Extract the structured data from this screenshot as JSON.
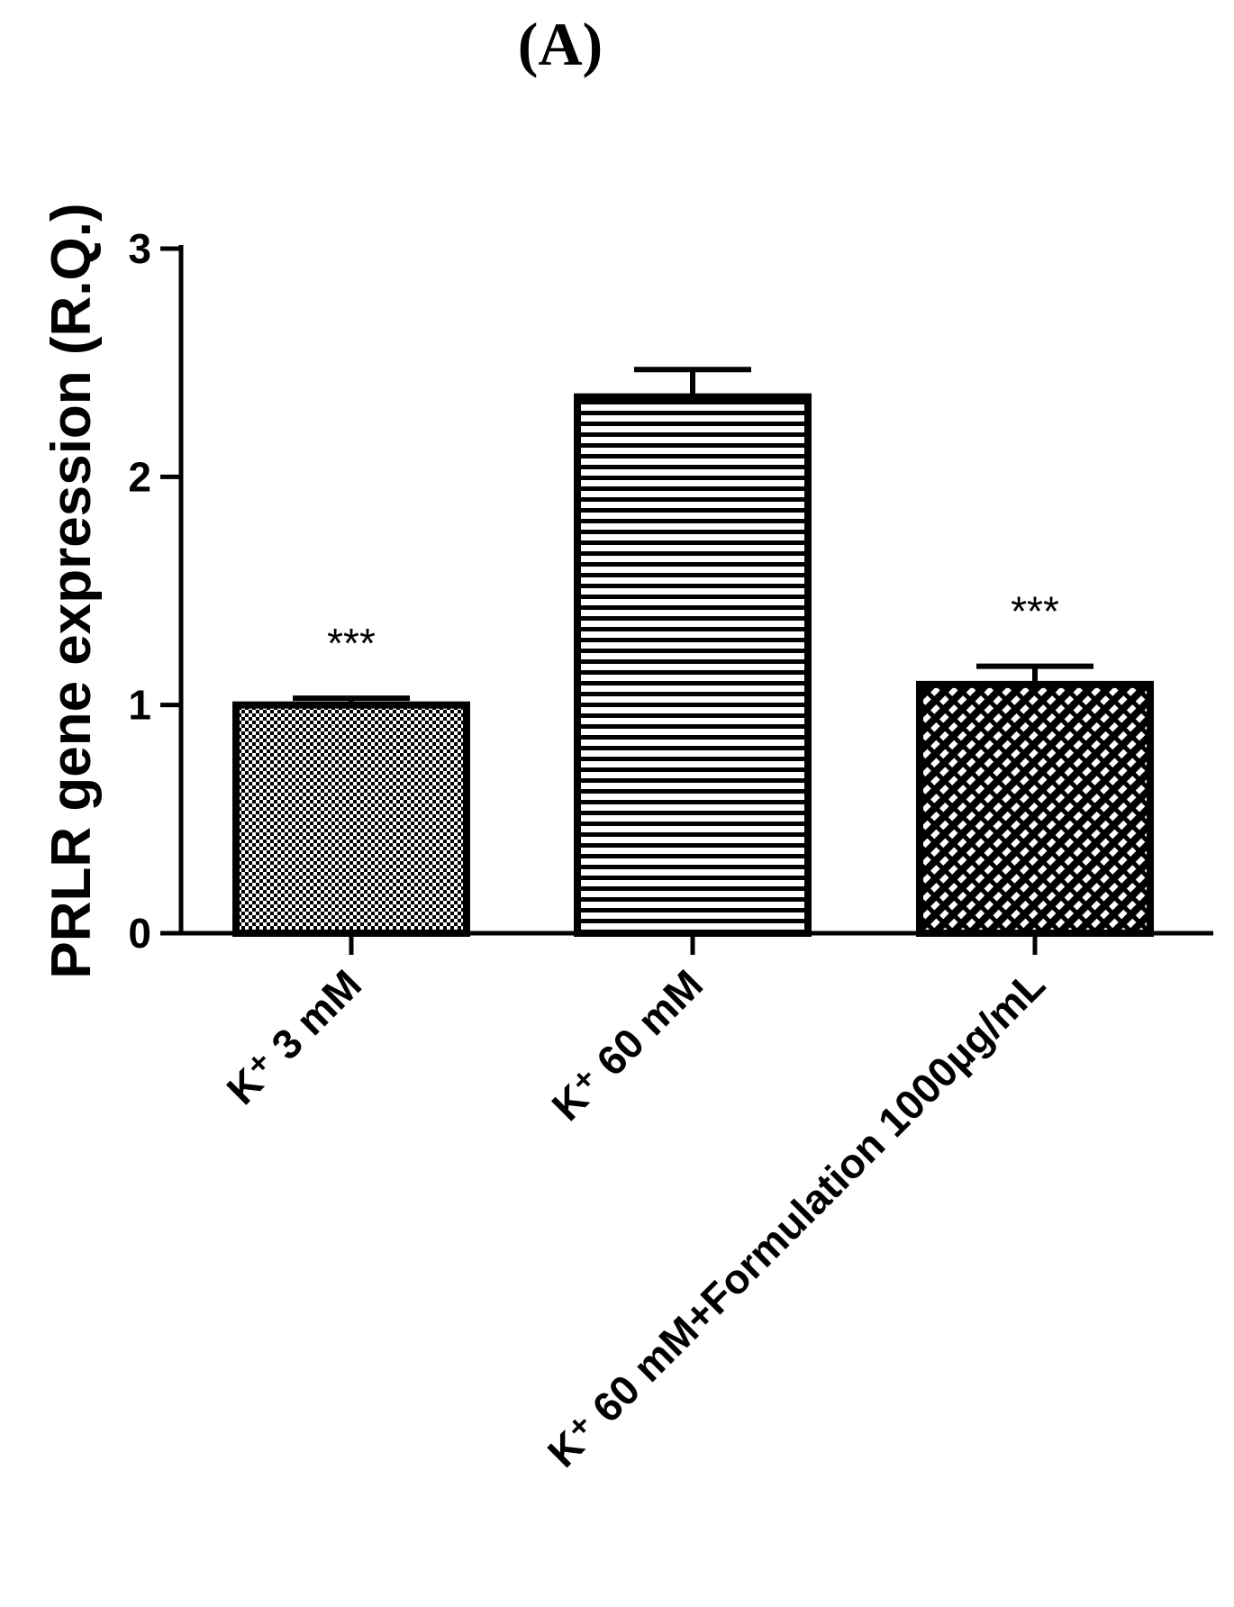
{
  "chart_data": {
    "type": "bar",
    "title": "(A)",
    "y_label": "PRLR gene expression (R.Q.)",
    "categories": [
      "K⁺ 3 mM",
      "K⁺ 60 mM",
      "K⁺ 60 mM+Formulation 1000µg/mL"
    ],
    "values": [
      1.0,
      2.35,
      1.09
    ],
    "errors": [
      0.03,
      0.12,
      0.08
    ],
    "significance": [
      "***",
      null,
      "***"
    ],
    "color": "#000000",
    "ylim": [
      0,
      3
    ],
    "yticks": [
      0,
      1,
      2,
      3
    ],
    "grid": false
  }
}
